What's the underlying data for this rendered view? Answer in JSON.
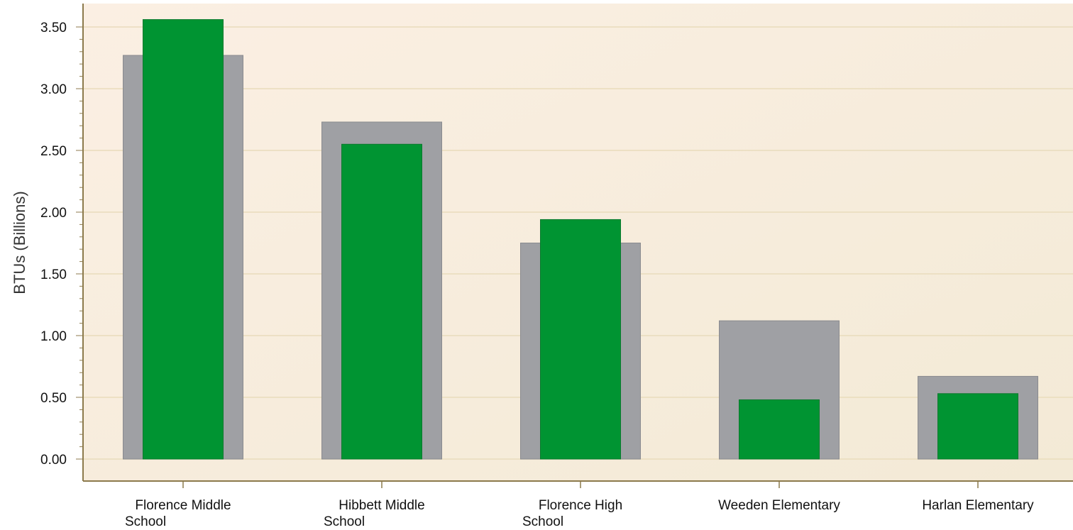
{
  "chart_data": {
    "type": "bar",
    "title": "",
    "xlabel": "",
    "ylabel": "BTUs (Billions)",
    "ylim": [
      0,
      3.5
    ],
    "y_ticks": [
      "0.00",
      "0.50",
      "1.00",
      "1.50",
      "2.00",
      "2.50",
      "3.00",
      "3.50"
    ],
    "grid": true,
    "legend": "none",
    "categories": [
      [
        "Florence Middle",
        "School"
      ],
      [
        "Hibbett Middle",
        "School"
      ],
      [
        "Florence High",
        "School"
      ],
      [
        "Weeden Elementary"
      ],
      [
        "Harlan Elementary"
      ]
    ],
    "series": [
      {
        "style": "wide-background",
        "color": "#9fa0a4",
        "values": [
          3.27,
          2.73,
          1.75,
          1.12,
          0.67
        ]
      },
      {
        "style": "narrow-foreground",
        "color": "#009432",
        "values": [
          3.56,
          2.55,
          1.94,
          0.48,
          0.53
        ]
      }
    ],
    "background_gradient": [
      "#fbefe3",
      "#f3ead6"
    ],
    "axis_color": "#8c7a4c",
    "grid_color": "#e9dcbc"
  }
}
